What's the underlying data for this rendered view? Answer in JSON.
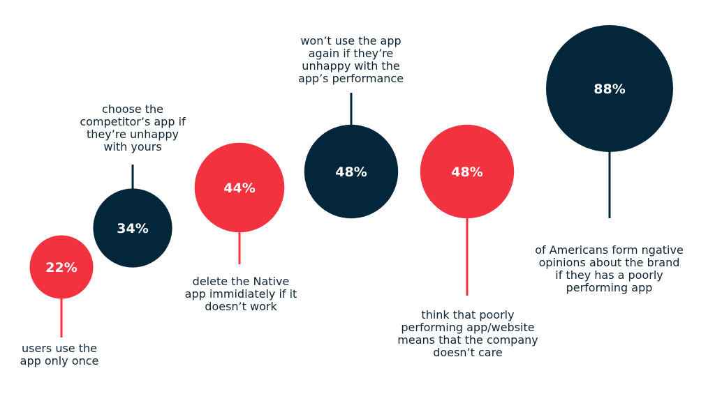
{
  "colors": {
    "dark": "#03263a",
    "red": "#f2323e",
    "text": "#0f2335",
    "label": "#ffffff"
  },
  "chart_data": {
    "type": "bubble",
    "title": "",
    "items": [
      {
        "value": 22,
        "label": "22%",
        "color": "red",
        "caption": "users use the\napp only once"
      },
      {
        "value": 34,
        "label": "34%",
        "color": "dark",
        "caption": "choose the\ncompetitor’s app if\nthey’re unhappy\nwith yours"
      },
      {
        "value": 44,
        "label": "44%",
        "color": "red",
        "caption": "delete the Native\napp immidiately if it\ndoesn’t work"
      },
      {
        "value": 48,
        "label": "48%",
        "color": "dark",
        "caption": "won’t use the app\nagain if they’re\nunhappy with the\napp’s performance"
      },
      {
        "value": 48,
        "label": "48%",
        "color": "red",
        "caption": "think that poorly\nperforming app/website\nmeans that the company\ndoesn’t care"
      },
      {
        "value": 88,
        "label": "88%",
        "color": "dark",
        "caption": "of Americans form ngative\nopinions about the brand\nif they has a poorly\nperforming app"
      }
    ]
  }
}
